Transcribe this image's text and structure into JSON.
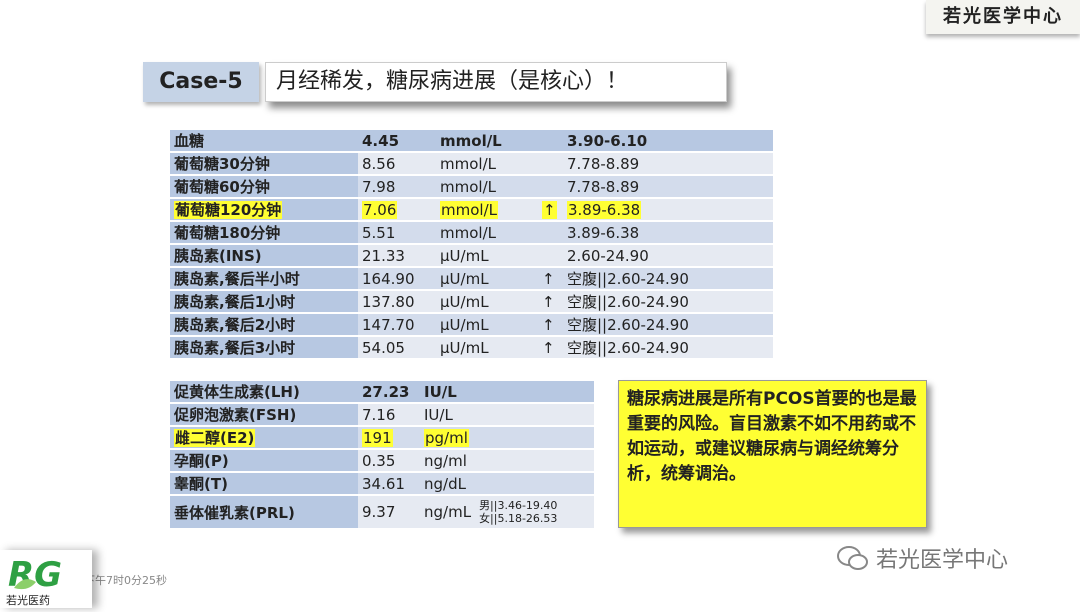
{
  "brand": "若光医学中心",
  "case_label": "Case-5",
  "title": "月经稀发，糖尿病进展（是核心）！",
  "table1": [
    {
      "name": "血糖",
      "value": "4.45",
      "unit": "mmol/L",
      "flag": "",
      "range": "3.90-6.10",
      "header": true
    },
    {
      "name": "葡萄糖30分钟",
      "value": "8.56",
      "unit": "mmol/L",
      "flag": "",
      "range": "7.78-8.89"
    },
    {
      "name": "葡萄糖60分钟",
      "value": "7.98",
      "unit": "mmol/L",
      "flag": "",
      "range": "7.78-8.89"
    },
    {
      "name": "葡萄糖120分钟",
      "value": "7.06",
      "unit": "mmol/L",
      "flag": "↑",
      "range": "3.89-6.38",
      "highlight": true
    },
    {
      "name": "葡萄糖180分钟",
      "value": "5.51",
      "unit": "mmol/L",
      "flag": "",
      "range": "3.89-6.38"
    },
    {
      "name": "胰岛素(INS)",
      "value": "21.33",
      "unit": "µU/mL",
      "flag": "",
      "range": "2.60-24.90"
    },
    {
      "name": "胰岛素,餐后半小时",
      "value": "164.90",
      "unit": "µU/mL",
      "flag": "↑",
      "range": "空腹||2.60-24.90"
    },
    {
      "name": "胰岛素,餐后1小时",
      "value": "137.80",
      "unit": "µU/mL",
      "flag": "↑",
      "range": "空腹||2.60-24.90"
    },
    {
      "name": "胰岛素,餐后2小时",
      "value": "147.70",
      "unit": "µU/mL",
      "flag": "↑",
      "range": "空腹||2.60-24.90"
    },
    {
      "name": "胰岛素,餐后3小时",
      "value": "54.05",
      "unit": "µU/mL",
      "flag": "↑",
      "range": "空腹||2.60-24.90"
    }
  ],
  "table2": [
    {
      "name": "促黄体生成素(LH)",
      "value": "27.23",
      "unit": "IU/L",
      "range": "",
      "header": true
    },
    {
      "name": "促卵泡激素(FSH)",
      "value": "7.16",
      "unit": "IU/L",
      "range": ""
    },
    {
      "name": "雌二醇(E2)",
      "value": "191",
      "unit": "pg/ml",
      "range": "",
      "highlight": true
    },
    {
      "name": "孕酮(P)",
      "value": "0.35",
      "unit": "ng/ml",
      "range": ""
    },
    {
      "name": "睾酮(T)",
      "value": "34.61",
      "unit": "ng/dL",
      "range": ""
    },
    {
      "name": "垂体催乳素(PRL)",
      "value": "9.37",
      "unit": "ng/mL",
      "range": "男||3.46-19.40",
      "range2": "女||5.18-26.53"
    }
  ],
  "note": "糖尿病进展是所有PCOS首要的也是最重要的风险。盲目激素不如不用药或不如运动，或建议糖尿病与调经统筹分析，统筹调治。",
  "logo_text": "若光医药",
  "timestamp": "下午7时0分25秒",
  "watermark": "若光医学中心",
  "colors": {
    "highlight": "#ffff33",
    "label_cell": "#b7c8e2",
    "row": "#d3dcec"
  }
}
